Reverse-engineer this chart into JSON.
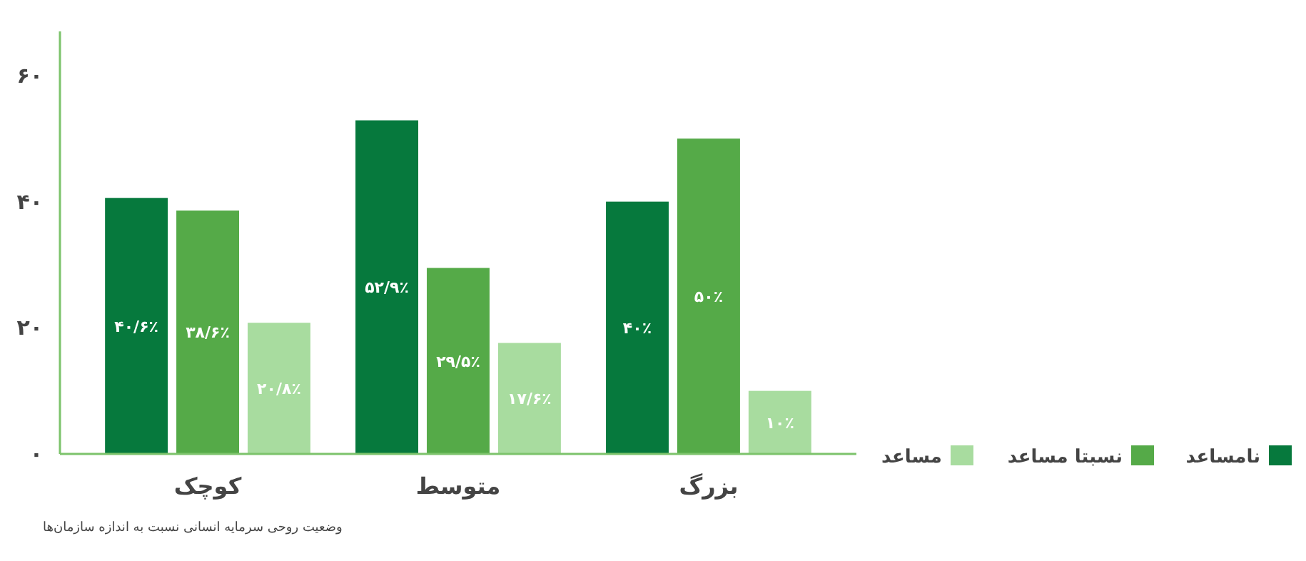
{
  "chart_data": {
    "type": "bar",
    "categories": [
      "کوچک",
      "متوسط",
      "بزرگ"
    ],
    "series": [
      {
        "name": "نامساعد",
        "color": "#06793d",
        "values": [
          40.6,
          52.9,
          40
        ],
        "value_labels": [
          "۴۰/۶٪",
          "۵۲/۹٪",
          "۴۰٪"
        ]
      },
      {
        "name": "نسبتا مساعد",
        "color": "#55aa48",
        "values": [
          38.6,
          29.5,
          50
        ],
        "value_labels": [
          "۳۸/۶٪",
          "۲۹/۵٪",
          "۵۰٪"
        ]
      },
      {
        "name": "مساعد",
        "color": "#a8dc9f",
        "values": [
          20.8,
          17.6,
          10
        ],
        "value_labels": [
          "۲۰/۸٪",
          "۱۷/۶٪",
          "۱۰٪"
        ]
      }
    ],
    "ylim": [
      0,
      67
    ],
    "yticks": [
      {
        "value": 0,
        "label": "۰"
      },
      {
        "value": 20,
        "label": "۲۰"
      },
      {
        "value": 40,
        "label": "۴۰"
      },
      {
        "value": 60,
        "label": "۶۰"
      }
    ],
    "grid": false,
    "legend": "bottom right",
    "annotations": [
      "وضعیت روحی سرمایه انسانی نسبت به اندازه سازمان‌ها"
    ]
  }
}
